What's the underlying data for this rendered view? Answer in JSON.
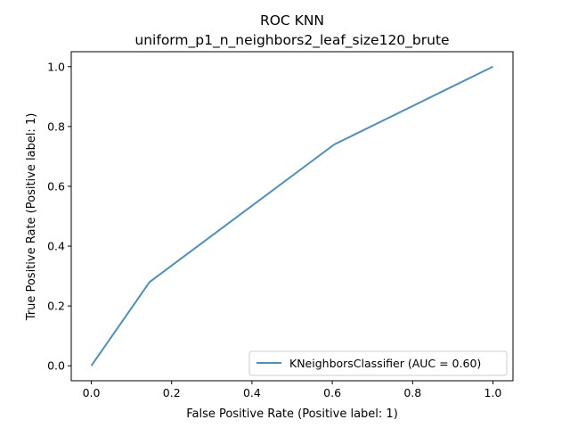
{
  "chart_data": {
    "type": "line",
    "title": "ROC KNN",
    "subtitle": "uniform_p1_n_neighbors2_leaf_size120_brute",
    "xlabel": "False Positive Rate (Positive label: 1)",
    "ylabel": "True Positive Rate (Positive label: 1)",
    "xlim": [
      -0.05,
      1.05
    ],
    "ylim": [
      -0.05,
      1.05
    ],
    "xticks": [
      "0.0",
      "0.2",
      "0.4",
      "0.6",
      "0.8",
      "1.0"
    ],
    "yticks": [
      "0.0",
      "0.2",
      "0.4",
      "0.6",
      "0.8",
      "1.0"
    ],
    "grid": false,
    "legend_position": "lower right",
    "series": [
      {
        "name": "KNeighborsClassifier (AUC = 0.60)",
        "color": "#4a90c2",
        "x": [
          0.0,
          0.145,
          0.605,
          1.0
        ],
        "y": [
          0.0,
          0.28,
          0.74,
          1.0
        ]
      }
    ]
  }
}
